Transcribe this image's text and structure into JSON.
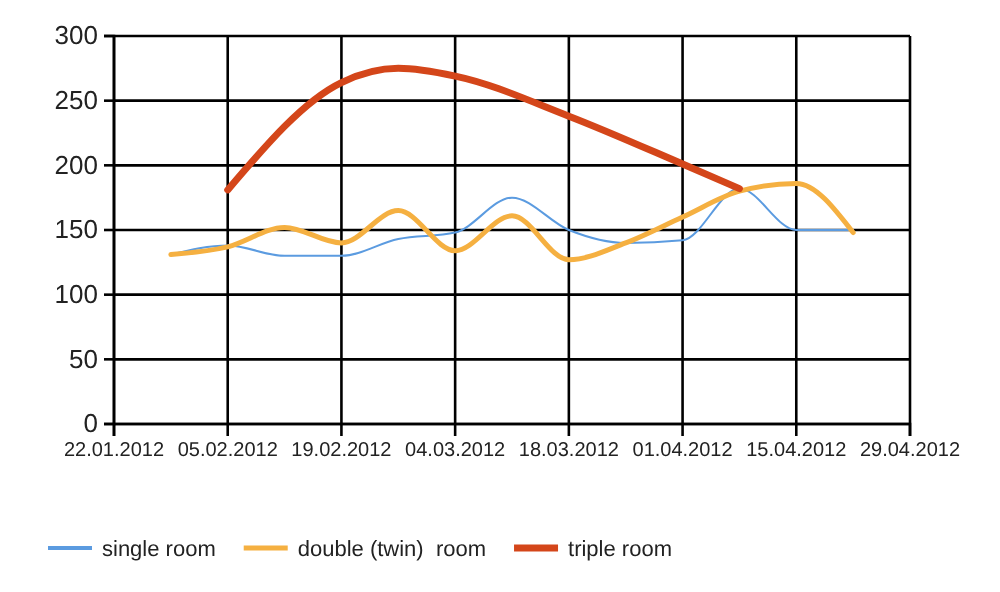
{
  "chart_data": {
    "type": "line",
    "xlim": [
      "2012-01-22",
      "2012-04-29"
    ],
    "ylim": [
      0,
      300
    ],
    "xticks": [
      {
        "value": "2012-01-22",
        "label": "22.01.2012"
      },
      {
        "value": "2012-02-05",
        "label": "05.02.2012"
      },
      {
        "value": "2012-02-19",
        "label": "19.02.2012"
      },
      {
        "value": "2012-03-04",
        "label": "04.03.2012"
      },
      {
        "value": "2012-03-18",
        "label": "18.03.2012"
      },
      {
        "value": "2012-04-01",
        "label": "01.04.2012"
      },
      {
        "value": "2012-04-15",
        "label": "15.04.2012"
      },
      {
        "value": "2012-04-29",
        "label": "29.04.2012"
      }
    ],
    "yticks": [
      0,
      50,
      100,
      150,
      200,
      250,
      300
    ],
    "grid": true,
    "legend": "bottom",
    "marker": "none",
    "line_style": "solid",
    "series": [
      {
        "name": "single room",
        "color": "#5b9be0",
        "x": [
          "2012-01-29",
          "2012-02-05",
          "2012-02-12",
          "2012-02-19",
          "2012-02-26",
          "2012-03-04",
          "2012-03-11",
          "2012-03-18",
          "2012-03-25",
          "2012-04-01",
          "2012-04-08",
          "2012-04-15",
          "2012-04-22"
        ],
        "values": [
          131,
          138,
          130,
          130,
          143,
          148,
          175,
          150,
          140,
          142,
          182,
          150,
          150
        ]
      },
      {
        "name": "double (twin)  room",
        "color": "#f5b041",
        "x": [
          "2012-01-29",
          "2012-02-05",
          "2012-02-12",
          "2012-02-19",
          "2012-02-26",
          "2012-03-04",
          "2012-03-11",
          "2012-03-18",
          "2012-03-25",
          "2012-04-01",
          "2012-04-08",
          "2012-04-15",
          "2012-04-22"
        ],
        "values": [
          131,
          137,
          152,
          140,
          165,
          134,
          161,
          127,
          140,
          160,
          180,
          186,
          148
        ]
      },
      {
        "name": "triple room",
        "color": "#d4461a",
        "x": [
          "2012-02-05",
          "2012-02-19",
          "2012-02-26",
          "2012-03-04",
          "2012-03-18",
          "2012-04-01",
          "2012-04-08"
        ],
        "values": [
          181,
          264,
          275,
          269,
          238,
          201,
          182
        ]
      }
    ]
  }
}
